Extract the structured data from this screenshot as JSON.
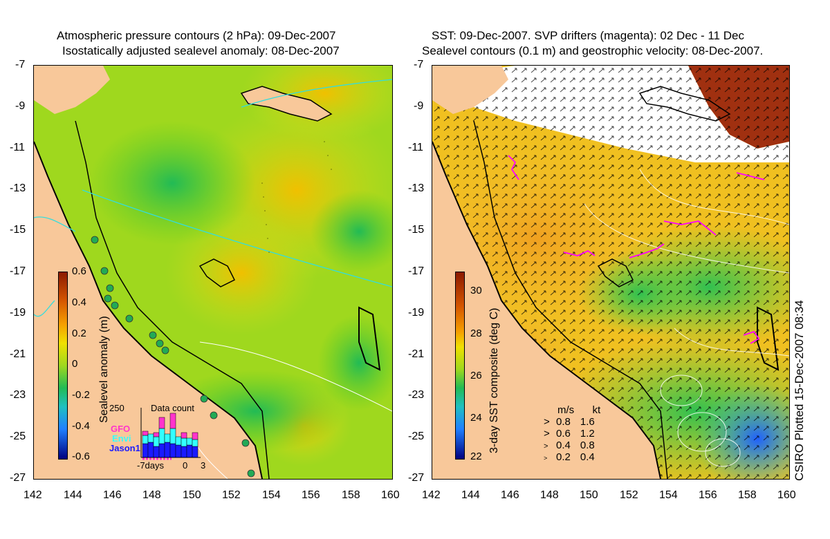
{
  "left": {
    "title_line1": "Atmospheric pressure contours (2 hPa): 09-Dec-2007",
    "title_line2": "Isostatically adjusted sealevel anomaly: 08-Dec-2007",
    "colorbar_label": "Sealevel anomaly (m)",
    "colorbar_ticks": [
      "0.6",
      "0.4",
      "0.2",
      "0",
      "-0.2",
      "-0.4",
      "-0.6"
    ],
    "inset": {
      "title": "Data count",
      "max_label": "250",
      "satellites": [
        {
          "name": "GFO",
          "color": "#ff33cc"
        },
        {
          "name": "Envi",
          "color": "#33ffff"
        },
        {
          "name": "Jason1",
          "color": "#1a1aff"
        }
      ],
      "axis_labels": [
        "-7days",
        "0",
        "3"
      ]
    }
  },
  "right": {
    "title_line1": "SST: 09-Dec-2007. SVP drifters (magenta): 02 Dec - 11 Dec",
    "title_line2": "Sealevel contours (0.1 m) and geostrophic velocity: 08-Dec-2007.",
    "colorbar_label": "3-day SST composite (deg C)",
    "colorbar_ticks": [
      "30",
      "28",
      "26",
      "24",
      "22"
    ],
    "velocity_legend": {
      "header": [
        "m/s",
        "kt"
      ],
      "rows": [
        [
          "0.8",
          "1.6"
        ],
        [
          "0.6",
          "1.2"
        ],
        [
          "0.4",
          "0.8"
        ],
        [
          "0.2",
          "0.4"
        ]
      ]
    }
  },
  "y_ticks": [
    "-7",
    "-9",
    "-11",
    "-13",
    "-15",
    "-17",
    "-19",
    "-21",
    "-23",
    "-25",
    "-27"
  ],
  "x_ticks": [
    "142",
    "144",
    "146",
    "148",
    "150",
    "152",
    "154",
    "156",
    "158",
    "160"
  ],
  "credit": "CSIRO Plotted 15-Dec-2007 08:34",
  "colors": {
    "land": "#f8c89a",
    "sst_warm": "#f5a623",
    "sla_green": "#55cc22",
    "white_cloud": "#ffffff",
    "drifter": "#ff00ff"
  }
}
